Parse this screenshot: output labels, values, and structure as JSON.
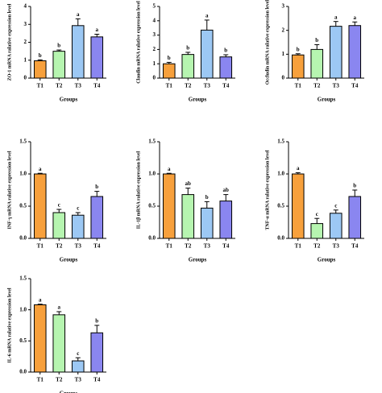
{
  "chart_data": [
    {
      "type": "bar",
      "ylabel": "ZO-1 mRNA ralative expression level",
      "xlabel": "Groups",
      "categories": [
        "T1",
        "T2",
        "T3",
        "T4"
      ],
      "values": [
        0.97,
        1.5,
        2.93,
        2.3
      ],
      "errors": [
        0.05,
        0.07,
        0.38,
        0.15
      ],
      "letters": [
        "b",
        "b",
        "a",
        "a"
      ],
      "colors": [
        "#f7a03c",
        "#b6f5b0",
        "#9cc8f4",
        "#8a86f0"
      ],
      "ylim": [
        0,
        4
      ],
      "yticks": [
        0,
        1,
        2,
        3,
        4
      ]
    },
    {
      "type": "bar",
      "ylabel": "Claudin mRNA ralative expression level",
      "xlabel": "Groups",
      "categories": [
        "T1",
        "T2",
        "T3",
        "T4"
      ],
      "values": [
        1.0,
        1.65,
        3.35,
        1.48
      ],
      "errors": [
        0.1,
        0.15,
        0.7,
        0.15
      ],
      "letters": [
        "b",
        "b",
        "a",
        "b"
      ],
      "colors": [
        "#f7a03c",
        "#b6f5b0",
        "#9cc8f4",
        "#8a86f0"
      ],
      "ylim": [
        0,
        5
      ],
      "yticks": [
        0,
        1,
        2,
        3,
        4,
        5
      ]
    },
    {
      "type": "bar",
      "ylabel": "Occludin mRNA ralative expression level",
      "xlabel": "Groups",
      "categories": [
        "T1",
        "T2",
        "T3",
        "T4"
      ],
      "values": [
        0.97,
        1.2,
        2.17,
        2.2
      ],
      "errors": [
        0.05,
        0.2,
        0.2,
        0.15
      ],
      "letters": [
        "b",
        "b",
        "a",
        "a"
      ],
      "colors": [
        "#f7a03c",
        "#b6f5b0",
        "#9cc8f4",
        "#8a86f0"
      ],
      "ylim": [
        0,
        3
      ],
      "yticks": [
        0,
        1,
        2,
        3
      ]
    },
    {
      "type": "bar",
      "ylabel": "INF-γ mRNA ralative expression level",
      "xlabel": "Groups",
      "categories": [
        "T1",
        "T2",
        "T3",
        "T4"
      ],
      "values": [
        1.0,
        0.4,
        0.36,
        0.65
      ],
      "errors": [
        0.01,
        0.05,
        0.04,
        0.08
      ],
      "letters": [
        "a",
        "c",
        "c",
        "b"
      ],
      "colors": [
        "#f7a03c",
        "#b6f5b0",
        "#9cc8f4",
        "#8a86f0"
      ],
      "ylim": [
        0,
        1.5
      ],
      "yticks": [
        {
          "value": 0,
          "label": "0.0"
        },
        0.5,
        {
          "value": 1,
          "label": "1.0"
        },
        1.5
      ]
    },
    {
      "type": "bar",
      "ylabel": "IL-1β mRNA ralative expression level",
      "xlabel": "Groups",
      "categories": [
        "T1",
        "T2",
        "T3",
        "T4"
      ],
      "values": [
        1.0,
        0.68,
        0.47,
        0.58
      ],
      "errors": [
        0.01,
        0.1,
        0.1,
        0.1
      ],
      "letters": [
        "a",
        "ab",
        "b",
        "ab"
      ],
      "colors": [
        "#f7a03c",
        "#b6f5b0",
        "#9cc8f4",
        "#8a86f0"
      ],
      "ylim": [
        0,
        1.5
      ],
      "yticks": [
        {
          "value": 0,
          "label": "0.0"
        },
        0.5,
        {
          "value": 1,
          "label": "1.0"
        },
        1.5
      ]
    },
    {
      "type": "bar",
      "ylabel": "TNF-α mRNA ralative expression level",
      "xlabel": "Groups",
      "categories": [
        "T1",
        "T2",
        "T3",
        "T4"
      ],
      "values": [
        1.0,
        0.23,
        0.39,
        0.65
      ],
      "errors": [
        0.02,
        0.08,
        0.05,
        0.1
      ],
      "letters": [
        "a",
        "c",
        "c",
        "b"
      ],
      "colors": [
        "#f7a03c",
        "#b6f5b0",
        "#9cc8f4",
        "#8a86f0"
      ],
      "ylim": [
        0,
        1.5
      ],
      "yticks": [
        {
          "value": 0,
          "label": "0.0"
        },
        0.5,
        {
          "value": 1,
          "label": "1.0"
        },
        1.5
      ]
    },
    {
      "type": "bar",
      "ylabel": "IL-6 mRNA ralative expression level",
      "xlabel": "Groups",
      "categories": [
        "T1",
        "T2",
        "T3",
        "T4"
      ],
      "values": [
        1.08,
        0.92,
        0.18,
        0.63
      ],
      "errors": [
        0.01,
        0.05,
        0.05,
        0.12
      ],
      "letters": [
        "a",
        "a",
        "c",
        "b"
      ],
      "colors": [
        "#f7a03c",
        "#b6f5b0",
        "#9cc8f4",
        "#8a86f0"
      ],
      "ylim": [
        0,
        1.5
      ],
      "yticks": [
        {
          "value": 0,
          "label": "0.0"
        },
        0.5,
        {
          "value": 1,
          "label": "1.0"
        },
        1.5
      ]
    }
  ]
}
